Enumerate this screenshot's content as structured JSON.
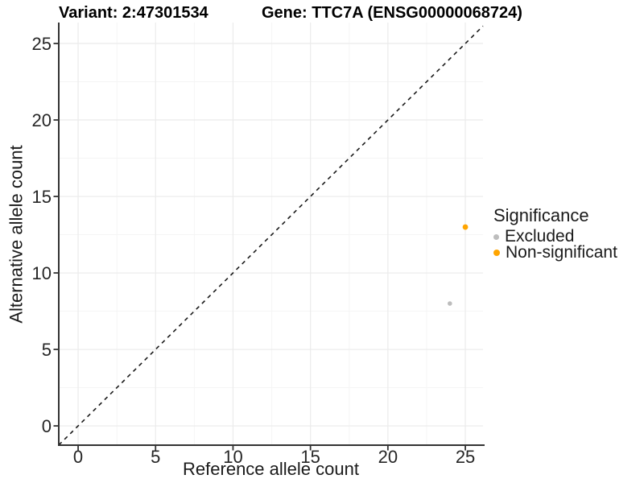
{
  "page": {
    "background": "#FFFFFF"
  },
  "titles": {
    "variant": "Variant: 2:47301534",
    "gene": "Gene: TTC7A (ENSG00000068724)"
  },
  "chart_data": {
    "type": "scatter",
    "xlabel": "Reference allele count",
    "ylabel": "Alternative allele count",
    "x_ticks": [
      0,
      5,
      10,
      15,
      20,
      25
    ],
    "y_ticks": [
      0,
      5,
      10,
      15,
      20,
      25
    ],
    "xlim": [
      -1.25,
      26.14
    ],
    "ylim": [
      -1.26,
      26.37
    ],
    "grid": {
      "major_color": "#EBEBEB",
      "minor_color": "#F5F5F5",
      "show_minor": true
    },
    "axis_color": "#333333",
    "tick_label_color": "#262626",
    "identity_line": {
      "slope": 1,
      "intercept": 0,
      "style": "dashed",
      "color": "#1A1A1A"
    },
    "series": [
      {
        "name": "Excluded",
        "color": "#BDBDBD",
        "radius": 2.8,
        "legend_dot": 7,
        "points": [
          [
            24,
            8
          ]
        ]
      },
      {
        "name": "Non-significant",
        "color": "#FFA500",
        "radius": 3.4,
        "legend_dot": 8,
        "points": [
          [
            25,
            13
          ]
        ]
      }
    ],
    "legend": {
      "title": "Significance",
      "position": "right"
    }
  }
}
